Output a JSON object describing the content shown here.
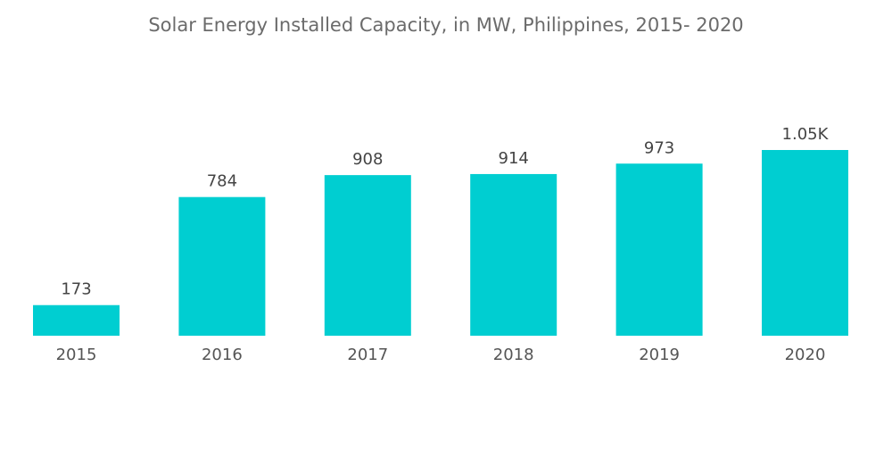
{
  "chart_data": {
    "type": "bar",
    "title": "Solar Energy Installed Capacity, in MW, Philippines, 2015- 2020",
    "categories": [
      "2015",
      "2016",
      "2017",
      "2018",
      "2019",
      "2020"
    ],
    "values": [
      173,
      784,
      908,
      914,
      973,
      1050
    ],
    "data_labels": [
      "173",
      "784",
      "908",
      "914",
      "973",
      "1.05K"
    ],
    "xlabel": "",
    "ylabel": "",
    "ylim": [
      0,
      1050
    ],
    "grid": false,
    "legend": "none",
    "bar_color": "#00CED1"
  }
}
